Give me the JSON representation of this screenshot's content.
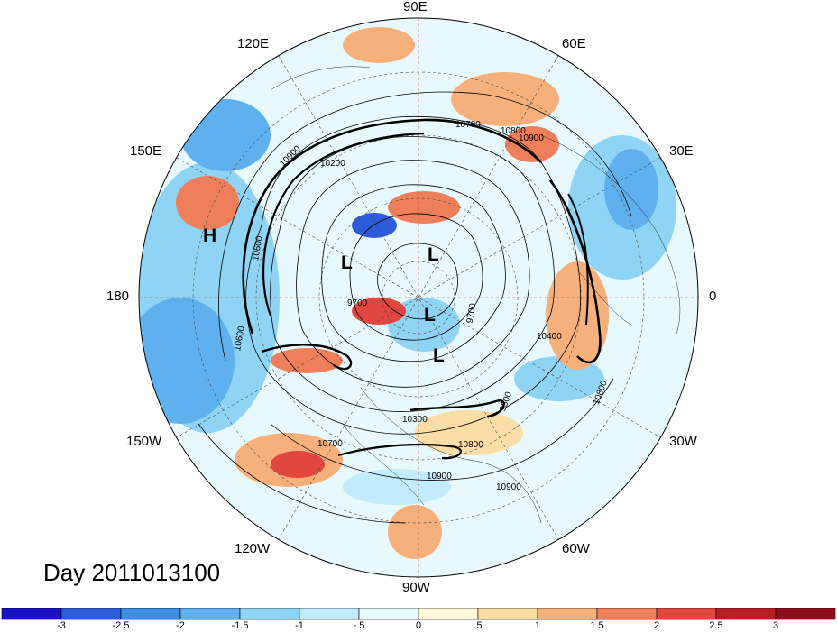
{
  "title": "Day 2011013100",
  "longitude_labels": {
    "deg90e": "90E",
    "deg120e": "120E",
    "deg60e": "60E",
    "deg150e": "150E",
    "deg30e": "30E",
    "deg180": "180",
    "deg0": "0",
    "deg150w": "150W",
    "deg30w": "30W",
    "deg120w": "120W",
    "deg60w": "60W",
    "deg90w": "90W"
  },
  "pressure_centers": {
    "high": "H",
    "low": "L"
  },
  "contour_labels": [
    "10900",
    "10800",
    "10700",
    "10600",
    "10400",
    "10300",
    "10200",
    "9700",
    "9500",
    "10800",
    "10900",
    "10700",
    "9700",
    "10900",
    "10800",
    "10600",
    "10900"
  ],
  "colorbar": {
    "ticks": [
      "-3",
      "-2.5",
      "-2",
      "-1.5",
      "-1",
      "-.5",
      "0",
      ".5",
      "1",
      "1.5",
      "2",
      "2.5",
      "3"
    ],
    "colors": [
      "#1b12c4",
      "#2e5bd9",
      "#3d8de3",
      "#5fb0ee",
      "#8fd4f5",
      "#c2ecfb",
      "#e8f9fd",
      "#fdf6d8",
      "#fbdea6",
      "#f5b07c",
      "#ee7f5a",
      "#e1473f",
      "#b81f23",
      "#8e0d1d"
    ]
  }
}
